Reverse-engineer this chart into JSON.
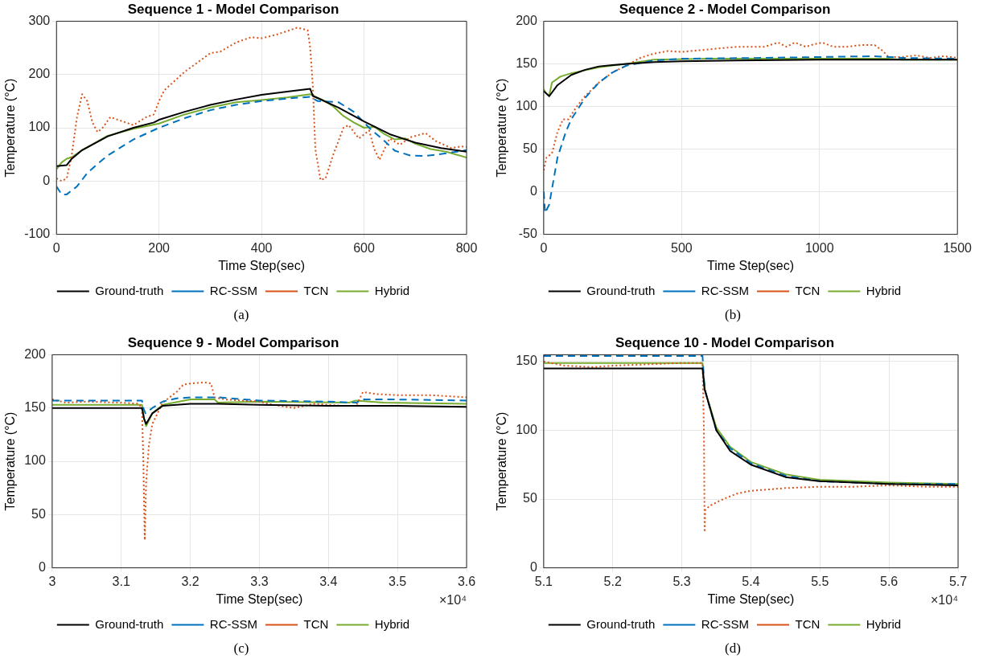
{
  "chart_data": [
    {
      "type": "line",
      "title": "Sequence 1 - Model Comparison",
      "xlabel": "Time Step(sec)",
      "ylabel": "Temperature (°C)",
      "xlim": [
        0,
        800
      ],
      "xticks": [
        0,
        200,
        400,
        600,
        800
      ],
      "ylim": [
        -100,
        300
      ],
      "yticks": [
        -100,
        0,
        100,
        200,
        300
      ],
      "grid": true,
      "legend": "bottom",
      "marker": "none",
      "annotations": [
        "(a)"
      ],
      "series": [
        {
          "name": "Ground-truth",
          "color": "#000000",
          "line_style": "solid",
          "x": [
            0,
            20,
            30,
            50,
            100,
            150,
            190,
            200,
            250,
            300,
            350,
            400,
            450,
            495,
            500,
            550,
            600,
            650,
            700,
            750,
            800
          ],
          "values": [
            28,
            30,
            42,
            58,
            84,
            100,
            110,
            115,
            130,
            143,
            153,
            162,
            168,
            173,
            160,
            138,
            112,
            88,
            72,
            62,
            55
          ]
        },
        {
          "name": "RC-SSM",
          "color": "#0072bd",
          "line_style": "dashed",
          "x": [
            0,
            10,
            20,
            40,
            60,
            80,
            100,
            150,
            200,
            250,
            300,
            350,
            400,
            450,
            495,
            510,
            550,
            580,
            610,
            640,
            660,
            690,
            720,
            760,
            800
          ],
          "values": [
            -10,
            -25,
            -25,
            -10,
            15,
            32,
            48,
            78,
            100,
            118,
            133,
            143,
            150,
            155,
            158,
            150,
            148,
            130,
            100,
            75,
            57,
            48,
            47,
            52,
            58
          ]
        },
        {
          "name": "TCN",
          "color": "#d95319",
          "line_style": "dotted",
          "x": [
            0,
            10,
            20,
            30,
            40,
            50,
            60,
            70,
            80,
            90,
            105,
            120,
            150,
            175,
            190,
            200,
            210,
            250,
            300,
            320,
            350,
            380,
            400,
            430,
            470,
            490,
            495,
            500,
            505,
            515,
            525,
            540,
            560,
            570,
            590,
            610,
            620,
            630,
            650,
            670,
            690,
            720,
            740,
            770,
            790,
            800
          ],
          "values": [
            5,
            0,
            5,
            50,
            120,
            163,
            150,
            110,
            92,
            100,
            120,
            115,
            105,
            120,
            125,
            150,
            170,
            205,
            240,
            243,
            260,
            270,
            268,
            275,
            288,
            283,
            250,
            180,
            60,
            2,
            5,
            50,
            100,
            105,
            80,
            95,
            60,
            40,
            80,
            68,
            82,
            90,
            75,
            62,
            65,
            64
          ]
        },
        {
          "name": "Hybrid",
          "color": "#77ac30",
          "line_style": "solid",
          "x": [
            0,
            10,
            20,
            30,
            50,
            100,
            150,
            200,
            250,
            300,
            350,
            400,
            450,
            495,
            500,
            520,
            540,
            560,
            580,
            600,
            620,
            640,
            660,
            680,
            700,
            730,
            760,
            800
          ],
          "values": [
            22,
            35,
            42,
            45,
            58,
            85,
            98,
            108,
            125,
            138,
            148,
            152,
            157,
            163,
            160,
            152,
            140,
            122,
            110,
            100,
            102,
            88,
            78,
            80,
            70,
            60,
            55,
            44
          ]
        }
      ]
    },
    {
      "type": "line",
      "title": "Sequence 2 - Model Comparison",
      "xlabel": "Time Step(sec)",
      "ylabel": "Temperature (°C)",
      "xlim": [
        0,
        1500
      ],
      "xticks": [
        0,
        500,
        1000,
        1500
      ],
      "ylim": [
        -50,
        200
      ],
      "yticks": [
        -50,
        0,
        50,
        100,
        150,
        200
      ],
      "grid": true,
      "legend": "bottom",
      "marker": "none",
      "annotations": [
        "(b)"
      ],
      "series": [
        {
          "name": "Ground-truth",
          "color": "#000000",
          "line_style": "solid",
          "x": [
            0,
            20,
            50,
            100,
            150,
            200,
            300,
            400,
            500,
            700,
            1000,
            1200,
            1500
          ],
          "values": [
            118,
            112,
            125,
            137,
            143,
            147,
            150,
            152,
            153,
            154,
            155,
            155,
            155
          ]
        },
        {
          "name": "RC-SSM",
          "color": "#0072bd",
          "line_style": "dashed",
          "x": [
            0,
            5,
            20,
            50,
            80,
            100,
            150,
            200,
            250,
            300,
            400,
            500,
            800,
            1000,
            1200,
            1300,
            1500
          ],
          "values": [
            0,
            -25,
            -15,
            40,
            70,
            85,
            110,
            128,
            140,
            148,
            154,
            156,
            157,
            158,
            159,
            157,
            156
          ]
        },
        {
          "name": "TCN",
          "color": "#d95319",
          "line_style": "dotted",
          "x": [
            0,
            10,
            30,
            50,
            70,
            90,
            120,
            150,
            200,
            250,
            300,
            350,
            400,
            450,
            500,
            600,
            700,
            800,
            850,
            880,
            910,
            950,
            980,
            1010,
            1050,
            1100,
            1150,
            1200,
            1230,
            1250,
            1300,
            1350,
            1400,
            1450,
            1500
          ],
          "values": [
            25,
            40,
            45,
            70,
            85,
            85,
            100,
            112,
            128,
            140,
            148,
            157,
            162,
            165,
            164,
            167,
            170,
            170,
            175,
            170,
            175,
            170,
            173,
            175,
            170,
            170,
            172,
            172,
            165,
            158,
            158,
            160,
            157,
            159,
            157
          ]
        },
        {
          "name": "Hybrid",
          "color": "#77ac30",
          "line_style": "solid",
          "x": [
            0,
            10,
            20,
            30,
            60,
            100,
            200,
            300,
            400,
            600,
            1000,
            1250,
            1300,
            1500
          ],
          "values": [
            120,
            115,
            113,
            128,
            135,
            139,
            146,
            150,
            155,
            156,
            156,
            156,
            155,
            155
          ]
        }
      ]
    },
    {
      "type": "line",
      "title": "Sequence 9 - Model Comparison",
      "xlabel": "Time Step(sec)",
      "ylabel": "Temperature (°C)",
      "xlim": [
        3,
        3.6
      ],
      "xticks": [
        3,
        3.1,
        3.2,
        3.3,
        3.4,
        3.5,
        3.6
      ],
      "ylim": [
        0,
        200
      ],
      "yticks": [
        0,
        50,
        100,
        150,
        200
      ],
      "grid": true,
      "legend": "bottom",
      "marker": "none",
      "annotations": [
        "×10⁴",
        "(c)"
      ],
      "series": [
        {
          "name": "Ground-truth",
          "color": "#000000",
          "line_style": "solid",
          "x": [
            3,
            3.13,
            3.133,
            3.136,
            3.145,
            3.16,
            3.2,
            3.24,
            3.3,
            3.4,
            3.5,
            3.6
          ],
          "values": [
            150,
            150,
            140,
            135,
            145,
            152,
            154,
            154,
            153,
            152,
            152,
            151
          ]
        },
        {
          "name": "RC-SSM",
          "color": "#0072bd",
          "line_style": "dashed",
          "x": [
            3,
            3.13,
            3.132,
            3.135,
            3.145,
            3.16,
            3.18,
            3.2,
            3.24,
            3.3,
            3.4,
            3.44,
            3.45,
            3.5,
            3.6
          ],
          "values": [
            157,
            157,
            150,
            145,
            150,
            156,
            159,
            160,
            160,
            157,
            156,
            155,
            158,
            158,
            157
          ]
        },
        {
          "name": "TCN",
          "color": "#d95319",
          "line_style": "dotted",
          "x": [
            3,
            3.02,
            3.05,
            3.1,
            3.125,
            3.13,
            3.132,
            3.134,
            3.136,
            3.14,
            3.145,
            3.16,
            3.18,
            3.19,
            3.2,
            3.22,
            3.23,
            3.235,
            3.25,
            3.3,
            3.32,
            3.35,
            3.38,
            3.42,
            3.44,
            3.45,
            3.47,
            3.5,
            3.55,
            3.6
          ],
          "values": [
            158,
            155,
            156,
            155,
            154,
            150,
            100,
            26,
            80,
            115,
            135,
            155,
            165,
            172,
            173,
            174,
            173,
            160,
            158,
            156,
            153,
            150,
            154,
            152,
            152,
            165,
            163,
            162,
            162,
            160
          ]
        },
        {
          "name": "Hybrid",
          "color": "#77ac30",
          "line_style": "solid",
          "x": [
            3,
            3.13,
            3.133,
            3.136,
            3.145,
            3.16,
            3.2,
            3.235,
            3.24,
            3.3,
            3.43,
            3.44,
            3.48,
            3.6
          ],
          "values": [
            153,
            153,
            140,
            133,
            145,
            153,
            158,
            158,
            155,
            156,
            155,
            157,
            155,
            154
          ]
        }
      ]
    },
    {
      "type": "line",
      "title": "Sequence 10 - Model Comparison",
      "xlabel": "Time Step(sec)",
      "ylabel": "Temperature (°C)",
      "xlim": [
        5.1,
        5.7
      ],
      "xticks": [
        5.1,
        5.2,
        5.3,
        5.4,
        5.5,
        5.6,
        5.7
      ],
      "ylim": [
        0,
        155
      ],
      "yticks": [
        0,
        50,
        100,
        150
      ],
      "grid": true,
      "legend": "bottom",
      "marker": "none",
      "annotations": [
        "×10⁴",
        "(d)"
      ],
      "series": [
        {
          "name": "Ground-truth",
          "color": "#000000",
          "line_style": "solid",
          "x": [
            5.1,
            5.33,
            5.333,
            5.35,
            5.37,
            5.4,
            5.45,
            5.5,
            5.55,
            5.6,
            5.7
          ],
          "values": [
            145,
            145,
            130,
            100,
            85,
            75,
            66,
            63,
            62,
            61,
            60
          ]
        },
        {
          "name": "RC-SSM",
          "color": "#0072bd",
          "line_style": "dashed",
          "x": [
            5.1,
            5.33,
            5.333,
            5.35,
            5.37,
            5.4,
            5.45,
            5.5,
            5.6,
            5.7
          ],
          "values": [
            154,
            154,
            130,
            100,
            87,
            76,
            67,
            63,
            61,
            61
          ]
        },
        {
          "name": "TCN",
          "color": "#d95319",
          "line_style": "dotted",
          "x": [
            5.1,
            5.13,
            5.17,
            5.2,
            5.25,
            5.3,
            5.33,
            5.332,
            5.333,
            5.334,
            5.34,
            5.36,
            5.38,
            5.4,
            5.45,
            5.5,
            5.55,
            5.6,
            5.65,
            5.7
          ],
          "values": [
            150,
            147,
            146,
            147,
            148,
            149,
            149,
            100,
            26,
            42,
            45,
            50,
            54,
            56,
            58,
            59,
            59,
            60,
            59,
            59
          ]
        },
        {
          "name": "Hybrid",
          "color": "#77ac30",
          "line_style": "solid",
          "x": [
            5.1,
            5.33,
            5.333,
            5.35,
            5.37,
            5.4,
            5.45,
            5.5,
            5.6,
            5.7
          ],
          "values": [
            149,
            149,
            130,
            102,
            88,
            77,
            68,
            64,
            62,
            61
          ]
        }
      ]
    }
  ]
}
